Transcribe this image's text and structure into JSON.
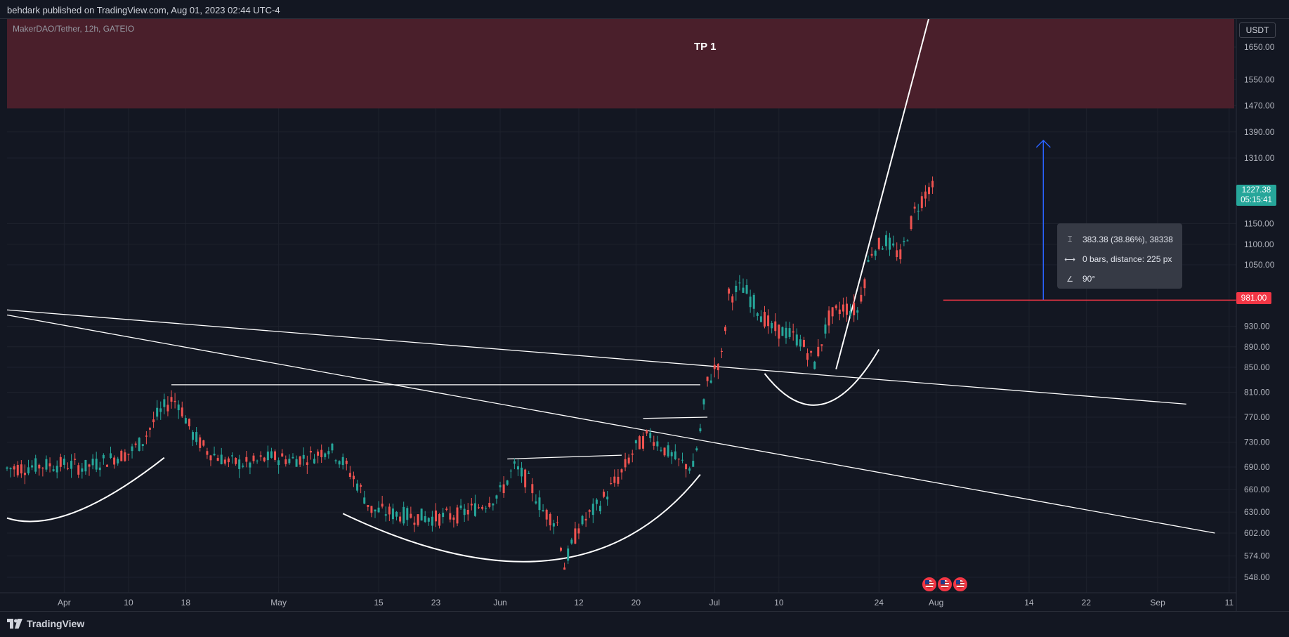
{
  "header": {
    "publish_line": "behdark published on TradingView.com, Aug 01, 2023 02:44 UTC-4"
  },
  "footer": {
    "brand": "TradingView"
  },
  "chart_data": {
    "type": "candlestick",
    "symbol": "MakerDAO/Tether, 12h, GATEIO",
    "currency": "USDT",
    "y_ticks": [
      "1650.00",
      "1550.00",
      "1470.00",
      "1390.00",
      "1310.00",
      "1150.00",
      "1100.00",
      "1050.00",
      "930.00",
      "890.00",
      "850.00",
      "810.00",
      "770.00",
      "730.00",
      "690.00",
      "660.00",
      "630.00",
      "602.00",
      "574.00",
      "548.00"
    ],
    "y_tick_values": [
      1650,
      1550,
      1470,
      1390,
      1310,
      1150,
      1100,
      1050,
      930,
      890,
      850,
      810,
      770,
      730,
      690,
      660,
      630,
      602,
      574,
      548
    ],
    "x_ticks": [
      "Apr",
      "10",
      "18",
      "May",
      "15",
      "23",
      "Jun",
      "12",
      "20",
      "Jul",
      "10",
      "24",
      "Aug",
      "14",
      "22",
      "Sep",
      "11"
    ],
    "x_tick_dates": [
      "2023-04-01",
      "2023-04-10",
      "2023-04-18",
      "2023-05-01",
      "2023-05-15",
      "2023-05-23",
      "2023-06-01",
      "2023-06-12",
      "2023-06-20",
      "2023-07-01",
      "2023-07-10",
      "2023-07-24",
      "2023-08-01",
      "2023-08-14",
      "2023-08-22",
      "2023-09-01",
      "2023-09-11"
    ],
    "x_range": [
      "2023-03-24",
      "2023-09-12"
    ],
    "y_range": [
      530,
      1750
    ],
    "last_price": "1227.38",
    "countdown": "05:15:41",
    "level_price": "981.00",
    "level_value": 981,
    "tp_zone": {
      "label": "TP 1",
      "from": 1462,
      "to": 1740
    },
    "measure": {
      "price_range": "383.38 (38.86%), 38338",
      "bars": "0 bars, distance: 225 px",
      "angle": "90°"
    },
    "close_points": [
      [
        "2023-03-24",
        688
      ],
      [
        "2023-03-28",
        692
      ],
      [
        "2023-04-01",
        695
      ],
      [
        "2023-04-04",
        690
      ],
      [
        "2023-04-07",
        702
      ],
      [
        "2023-04-10",
        712
      ],
      [
        "2023-04-12",
        732
      ],
      [
        "2023-04-14",
        772
      ],
      [
        "2023-04-16",
        798
      ],
      [
        "2023-04-17",
        794
      ],
      [
        "2023-04-19",
        742
      ],
      [
        "2023-04-21",
        716
      ],
      [
        "2023-04-24",
        698
      ],
      [
        "2023-04-27",
        695
      ],
      [
        "2023-04-30",
        706
      ],
      [
        "2023-05-03",
        702
      ],
      [
        "2023-05-06",
        708
      ],
      [
        "2023-05-08",
        722
      ],
      [
        "2023-05-10",
        698
      ],
      [
        "2023-05-12",
        668
      ],
      [
        "2023-05-14",
        633
      ],
      [
        "2023-05-17",
        628
      ],
      [
        "2023-05-20",
        624
      ],
      [
        "2023-05-23",
        622
      ],
      [
        "2023-05-26",
        626
      ],
      [
        "2023-05-29",
        637
      ],
      [
        "2023-06-01",
        655
      ],
      [
        "2023-06-03",
        690
      ],
      [
        "2023-06-05",
        670
      ],
      [
        "2023-06-07",
        632
      ],
      [
        "2023-06-09",
        615
      ],
      [
        "2023-06-10",
        562
      ],
      [
        "2023-06-12",
        610
      ],
      [
        "2023-06-15",
        642
      ],
      [
        "2023-06-18",
        682
      ],
      [
        "2023-06-20",
        722
      ],
      [
        "2023-06-22",
        742
      ],
      [
        "2023-06-24",
        718
      ],
      [
        "2023-06-26",
        698
      ],
      [
        "2023-06-28",
        690
      ],
      [
        "2023-06-29",
        748
      ],
      [
        "2023-06-30",
        825
      ],
      [
        "2023-07-02",
        870
      ],
      [
        "2023-07-03",
        990
      ],
      [
        "2023-07-05",
        1005
      ],
      [
        "2023-07-07",
        965
      ],
      [
        "2023-07-09",
        925
      ],
      [
        "2023-07-11",
        918
      ],
      [
        "2023-07-13",
        902
      ],
      [
        "2023-07-15",
        858
      ],
      [
        "2023-07-17",
        945
      ],
      [
        "2023-07-19",
        968
      ],
      [
        "2023-07-21",
        960
      ],
      [
        "2023-07-23",
        1085
      ],
      [
        "2023-07-25",
        1108
      ],
      [
        "2023-07-27",
        1070
      ],
      [
        "2023-07-29",
        1180
      ],
      [
        "2023-07-31",
        1240
      ],
      [
        "2023-08-01",
        1227
      ]
    ]
  }
}
